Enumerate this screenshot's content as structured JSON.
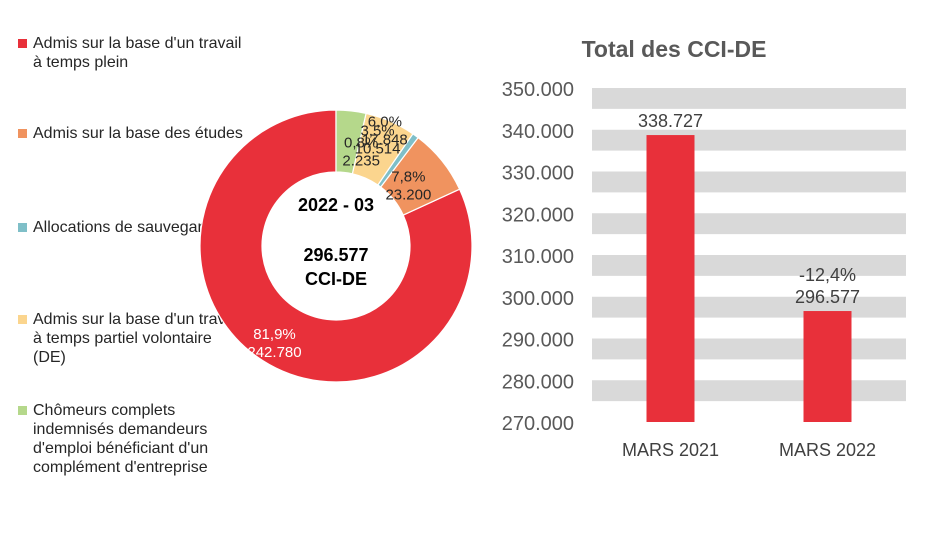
{
  "donut": {
    "center_period": "2022 - 03",
    "center_total": "296.577",
    "center_unit": "CCI-DE",
    "legend": [
      {
        "label": "Admis sur la base d'un travail à temps plein",
        "color": "#e8303a"
      },
      {
        "label": "Admis sur la base des études",
        "color": "#f0935f"
      },
      {
        "label": "Allocations de sauvegarde",
        "color": "#7fbfc8"
      },
      {
        "label": "Admis sur la base d'un travail à temps partiel volontaire (DE)",
        "color": "#fbd58e"
      },
      {
        "label": "Chômeurs complets indemnisés demandeurs d'emploi bénéficiant d'un complément d'entreprise",
        "color": "#b5d88b"
      }
    ]
  },
  "chart_data": [
    {
      "type": "pie",
      "donut": true,
      "title": "",
      "categories": [
        "Admis sur la base d'un travail à temps plein",
        "Admis sur la base des études",
        "Allocations de sauvegarde",
        "Admis sur la base d'un travail à temps partiel volontaire (DE)",
        "Chômeurs complets indemnisés demandeurs d'emploi bénéficiant d'un complément d'entreprise"
      ],
      "values": [
        242780,
        23200,
        2235,
        17848,
        10514
      ],
      "value_labels": [
        "242.780",
        "23.200",
        "2.235",
        "17.848",
        "10.514"
      ],
      "percent_labels": [
        "81,9%",
        "7,8%",
        "0,8%",
        "6,0%",
        "3,5%"
      ],
      "colors": [
        "#e8303a",
        "#f0935f",
        "#7fbfc8",
        "#fbd58e",
        "#b5d88b"
      ],
      "legend_position": "left"
    },
    {
      "type": "bar",
      "title": "Total des CCI-DE",
      "categories": [
        "MARS 2021",
        "MARS 2022"
      ],
      "values": [
        338727,
        296577
      ],
      "value_labels": [
        "338.727",
        "296.577"
      ],
      "annotations": [
        "",
        "-12,4%"
      ],
      "xlabel": "",
      "ylabel": "",
      "ylim": [
        270000,
        350000
      ],
      "yticks": [
        270000,
        280000,
        290000,
        300000,
        310000,
        320000,
        330000,
        340000,
        350000
      ],
      "ytick_labels": [
        "270.000",
        "280.000",
        "290.000",
        "300.000",
        "310.000",
        "320.000",
        "330.000",
        "340.000",
        "350.000"
      ],
      "bar_color": "#e8303a",
      "band_color": "#d9d9d9",
      "grid": true
    }
  ]
}
